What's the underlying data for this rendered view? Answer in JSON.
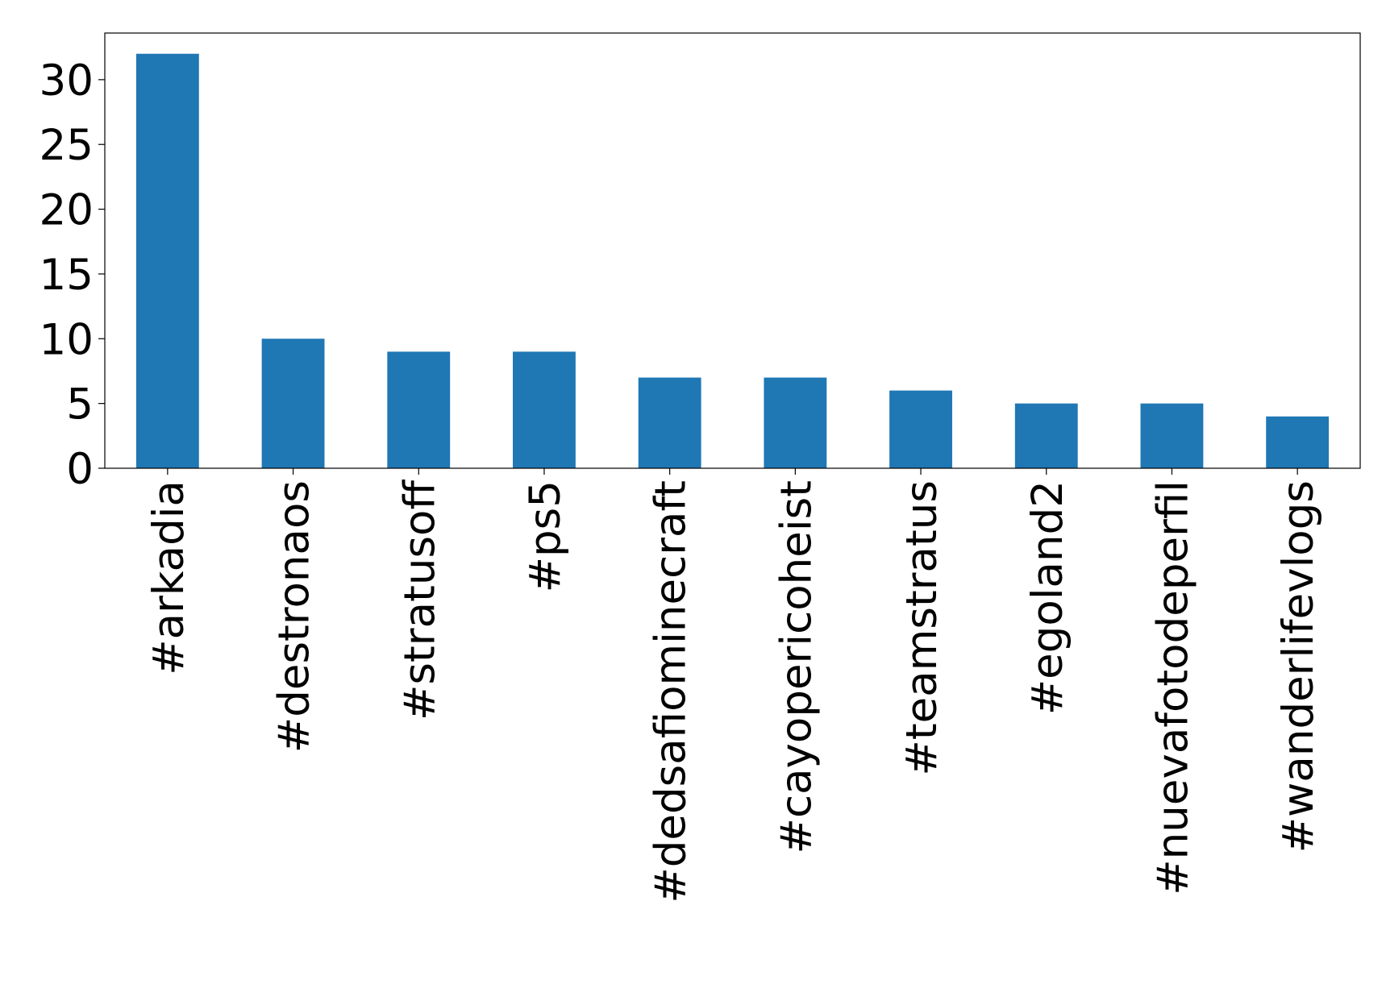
{
  "chart_data": {
    "type": "bar",
    "categories": [
      "#arkadia",
      "#destronaos",
      "#stratusoff",
      "#ps5",
      "#dedsafiominecraft",
      "#cayopericoheist",
      "#teamstratus",
      "#egoland2",
      "#nuevafotodeperfil",
      "#wanderlifevlogs"
    ],
    "values": [
      32,
      10,
      9,
      9,
      7,
      7,
      6,
      5,
      5,
      4
    ],
    "color": "#1f77b4",
    "ylim": [
      0,
      33.6
    ],
    "yticks": [
      0,
      5,
      10,
      15,
      20,
      25,
      30
    ],
    "grid": false
  }
}
